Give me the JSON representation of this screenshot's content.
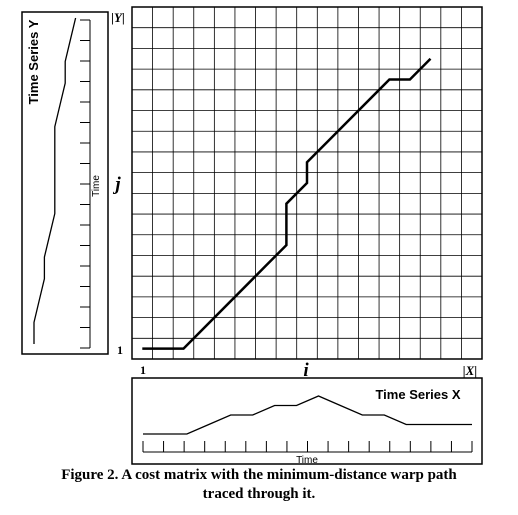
{
  "figure": {
    "caption_line1": "Figure 2. A cost matrix with the minimum-distance warp path",
    "caption_line2": "traced through it.",
    "colors": {
      "line": "#000000",
      "grid": "#000000",
      "background": "#ffffff"
    }
  },
  "matrix": {
    "columns": 17,
    "rows": 17,
    "corner_y_label": "|Y|",
    "corner_x_label": "|X|",
    "axis_j_label": "j",
    "axis_i_label": "i",
    "x_start_label": "1",
    "y_start_label": "1"
  },
  "warp_path": [
    [
      1,
      1
    ],
    [
      2,
      1
    ],
    [
      3,
      1
    ],
    [
      7,
      5
    ],
    [
      8,
      6
    ],
    [
      8,
      8
    ],
    [
      9,
      9
    ],
    [
      9,
      10
    ],
    [
      10,
      11
    ],
    [
      13,
      14
    ],
    [
      14,
      14
    ],
    [
      15,
      15
    ]
  ],
  "series_x": {
    "title": "Time Series X",
    "axis_label": "Time",
    "values": [
      0,
      0,
      0,
      1,
      2,
      2,
      3,
      3,
      4,
      3,
      2,
      2,
      1,
      1,
      1,
      1
    ]
  },
  "series_y": {
    "title": "Time Series Y",
    "axis_label": "Time",
    "values": [
      0,
      0,
      1,
      2,
      2,
      3,
      4,
      4,
      4,
      4,
      4,
      5,
      6,
      6,
      7,
      8
    ]
  }
}
